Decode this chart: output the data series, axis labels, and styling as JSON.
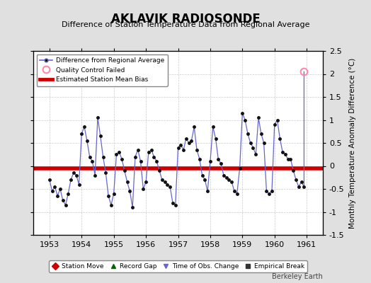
{
  "title": "AKLAVIK RADIOSONDE",
  "subtitle": "Difference of Station Temperature Data from Regional Average",
  "ylabel": "Monthly Temperature Anomaly Difference (°C)",
  "watermark": "Berkeley Earth",
  "xlim": [
    1952.5,
    1961.5
  ],
  "ylim": [
    -1.5,
    2.5
  ],
  "yticks": [
    -1.5,
    -1.0,
    -0.5,
    0.0,
    0.5,
    1.0,
    1.5,
    2.0,
    2.5
  ],
  "ytick_labels": [
    "-1.5",
    "-1",
    "-0.5",
    "0",
    "0.5",
    "1",
    "1.5",
    "2",
    "2.5"
  ],
  "xticks": [
    1953,
    1954,
    1955,
    1956,
    1957,
    1958,
    1959,
    1960,
    1961
  ],
  "bias_line": -0.05,
  "line_color": "#6666cc",
  "marker_color": "#111111",
  "bias_color": "#cc0000",
  "background_color": "#e0e0e0",
  "plot_bg_color": "#ffffff",
  "grid_color": "#cccccc",
  "qc_failed_x": 1960.917,
  "qc_failed_y": 2.05,
  "data_x": [
    1953.0,
    1953.083,
    1953.167,
    1953.25,
    1953.333,
    1953.417,
    1953.5,
    1953.583,
    1953.667,
    1953.75,
    1953.833,
    1953.917,
    1954.0,
    1954.083,
    1954.167,
    1954.25,
    1954.333,
    1954.417,
    1954.5,
    1954.583,
    1954.667,
    1954.75,
    1954.833,
    1954.917,
    1955.0,
    1955.083,
    1955.167,
    1955.25,
    1955.333,
    1955.417,
    1955.5,
    1955.583,
    1955.667,
    1955.75,
    1955.833,
    1955.917,
    1956.0,
    1956.083,
    1956.167,
    1956.25,
    1956.333,
    1956.417,
    1956.5,
    1956.583,
    1956.667,
    1956.75,
    1956.833,
    1956.917,
    1957.0,
    1957.083,
    1957.167,
    1957.25,
    1957.333,
    1957.417,
    1957.5,
    1957.583,
    1957.667,
    1957.75,
    1957.833,
    1957.917,
    1958.0,
    1958.083,
    1958.167,
    1958.25,
    1958.333,
    1958.417,
    1958.5,
    1958.583,
    1958.667,
    1958.75,
    1958.833,
    1958.917,
    1959.0,
    1959.083,
    1959.167,
    1959.25,
    1959.333,
    1959.417,
    1959.5,
    1959.583,
    1959.667,
    1959.75,
    1959.833,
    1959.917,
    1960.0,
    1960.083,
    1960.167,
    1960.25,
    1960.333,
    1960.417,
    1960.5,
    1960.583,
    1960.667,
    1960.75,
    1960.833,
    1960.917
  ],
  "data_y": [
    -0.3,
    -0.55,
    -0.45,
    -0.65,
    -0.5,
    -0.75,
    -0.85,
    -0.6,
    -0.3,
    -0.15,
    -0.2,
    -0.4,
    0.7,
    0.85,
    0.55,
    0.2,
    0.1,
    -0.2,
    1.05,
    0.65,
    0.2,
    -0.15,
    -0.65,
    -0.85,
    -0.6,
    0.25,
    0.3,
    0.15,
    -0.1,
    -0.35,
    -0.55,
    -0.9,
    0.2,
    0.35,
    0.1,
    -0.5,
    -0.35,
    0.3,
    0.35,
    0.2,
    0.1,
    -0.1,
    -0.3,
    -0.35,
    -0.4,
    -0.45,
    -0.8,
    -0.85,
    0.4,
    0.45,
    0.35,
    0.6,
    0.5,
    0.55,
    0.85,
    0.35,
    0.15,
    -0.2,
    -0.3,
    -0.55,
    0.1,
    0.85,
    0.6,
    0.15,
    0.05,
    -0.2,
    -0.25,
    -0.3,
    -0.35,
    -0.55,
    -0.6,
    -0.05,
    1.15,
    1.0,
    0.7,
    0.5,
    0.4,
    0.25,
    1.05,
    0.7,
    0.5,
    -0.55,
    -0.6,
    -0.55,
    0.9,
    1.0,
    0.6,
    0.3,
    0.25,
    0.15,
    0.15,
    -0.1,
    -0.3,
    -0.45,
    -0.35,
    -0.45
  ],
  "spike_x": 1960.917,
  "spike_y": 2.05
}
